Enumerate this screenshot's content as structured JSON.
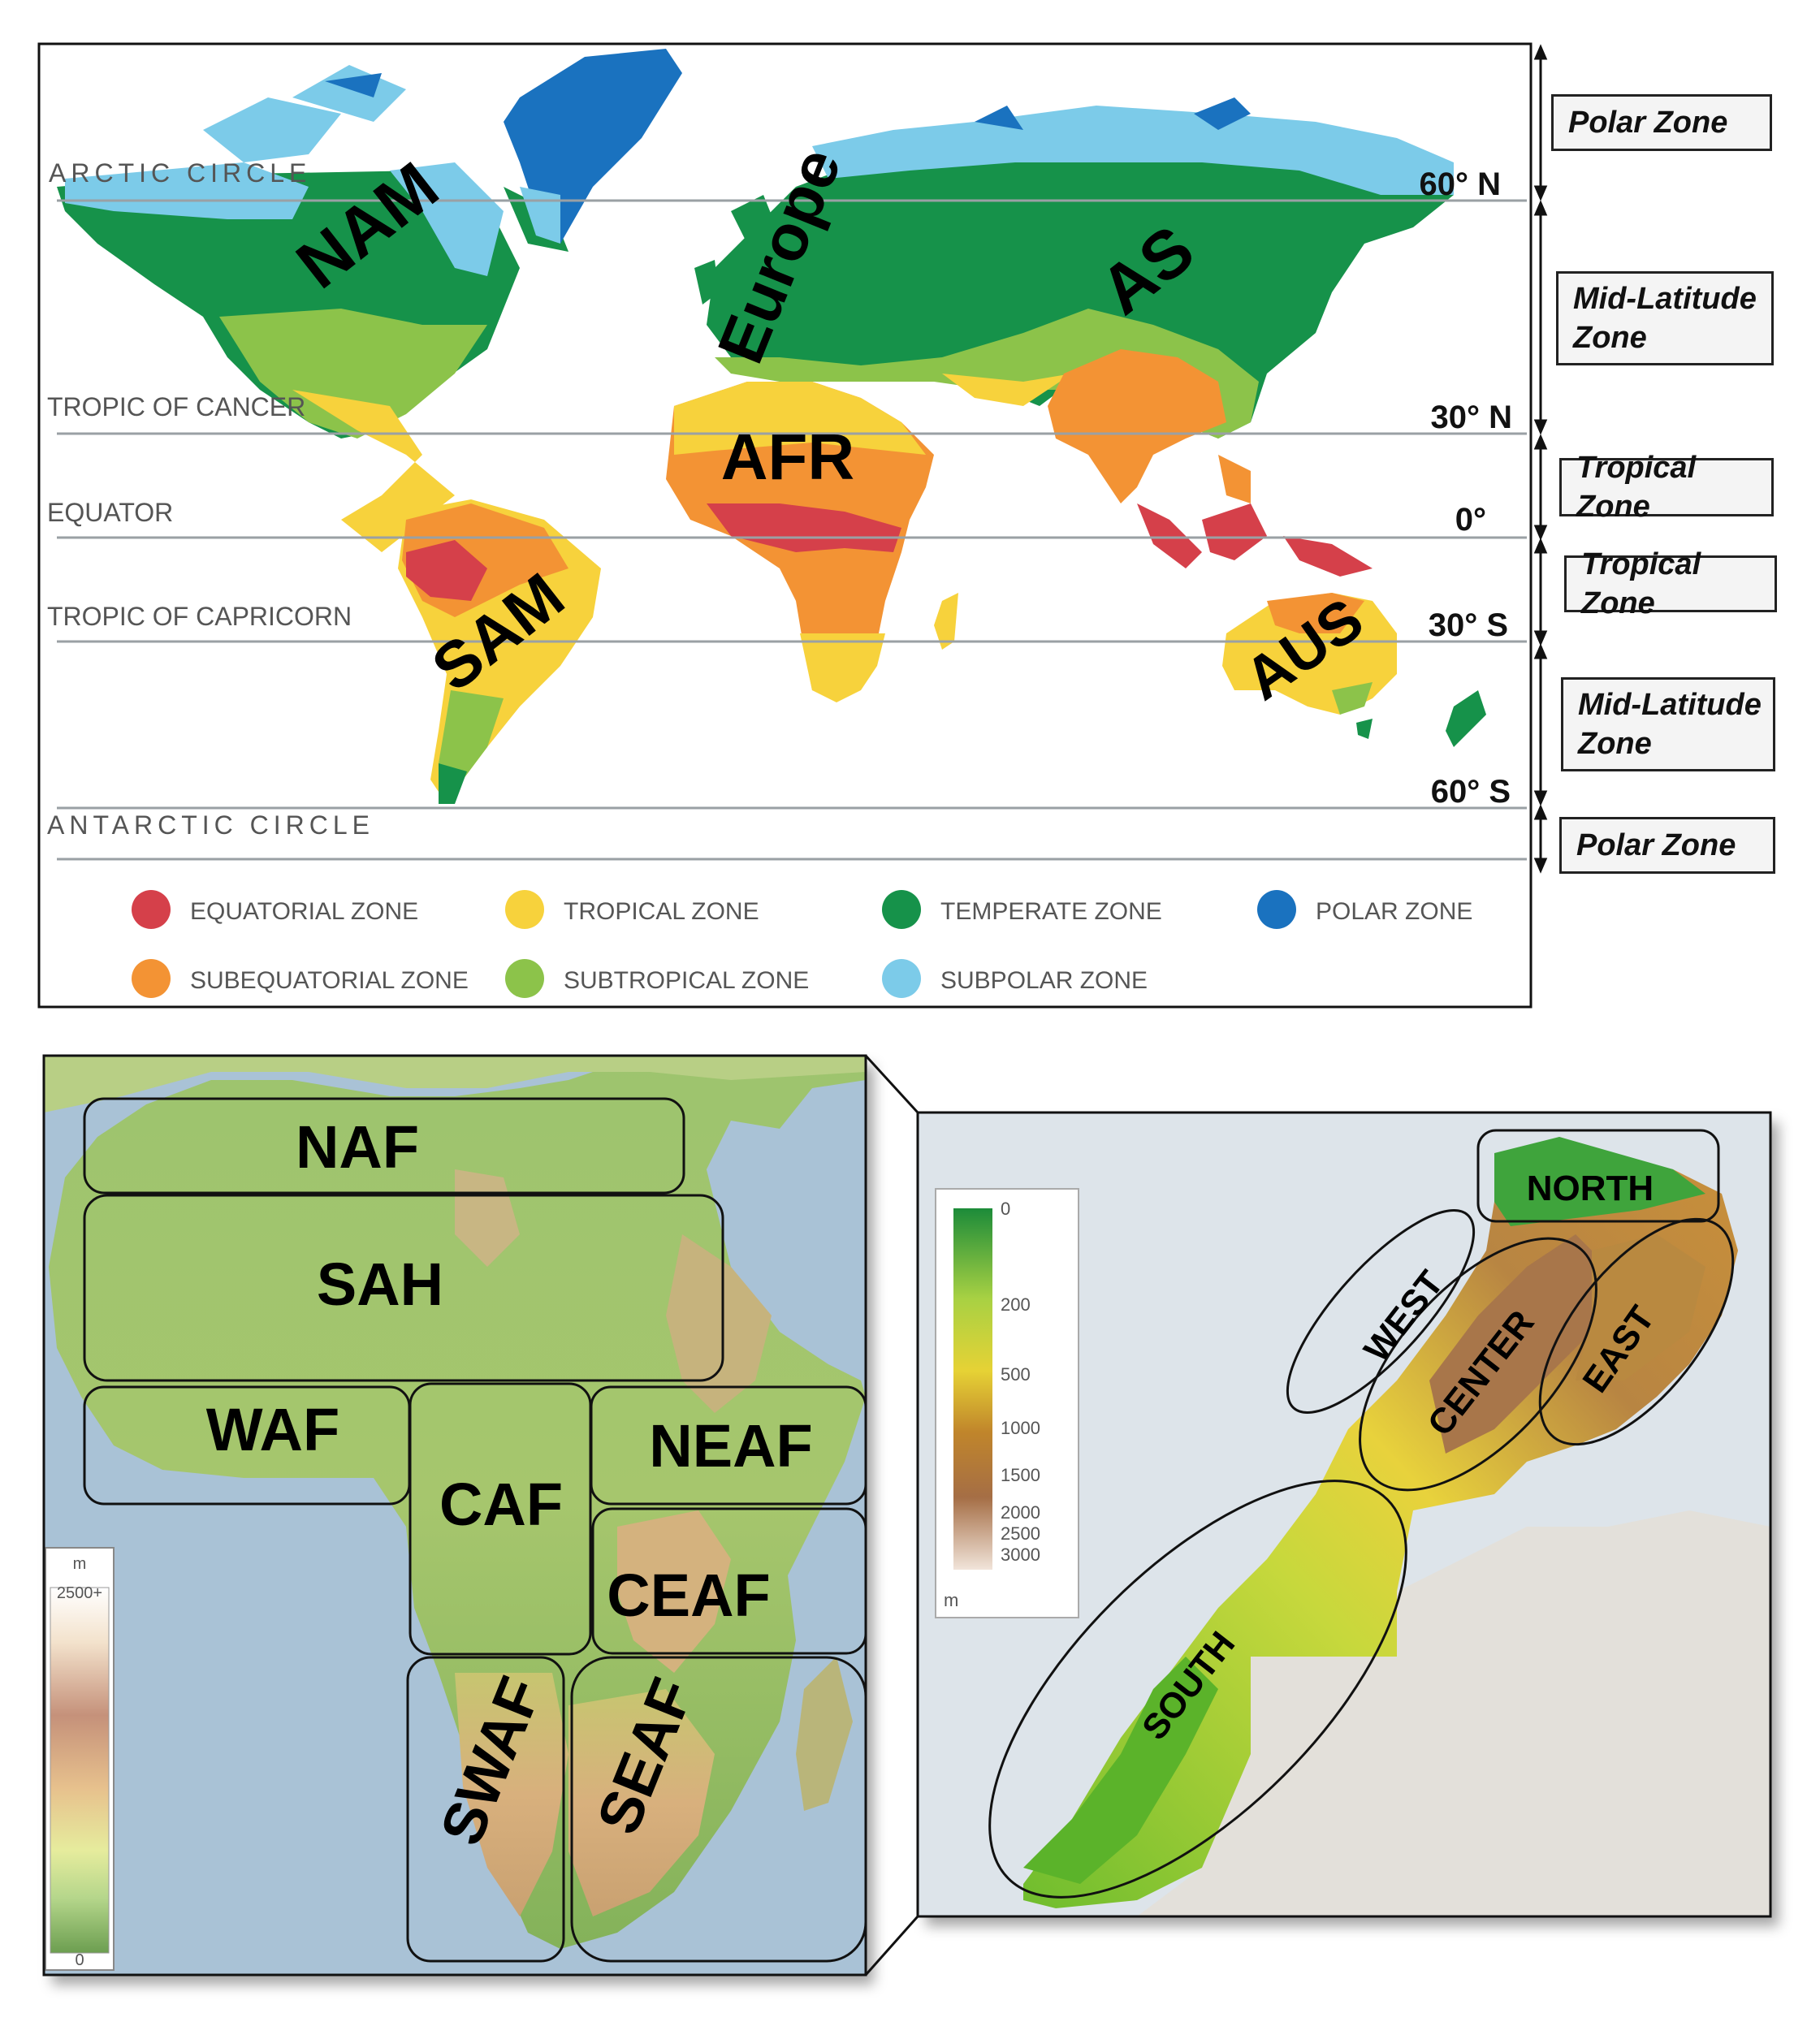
{
  "world_map": {
    "circle_labels": {
      "arctic": "ARCTIC CIRCLE",
      "cancer": "TROPIC OF CANCER",
      "equator": "EQUATOR",
      "capricorn": "TROPIC OF CAPRICORN",
      "antarctic": "ANTARCTIC CIRCLE"
    },
    "latitudes": {
      "n60": "60° N",
      "n30": "30° N",
      "eq": "0°",
      "s30": "30° S",
      "s60": "60° S"
    },
    "continents": {
      "nam": "NAM",
      "europe": "Europe",
      "as": "AS",
      "afr": "AFR",
      "sam": "SAM",
      "aus": "AUS"
    },
    "legend": [
      {
        "label": "EQUATORIAL ZONE",
        "color": "#d5404a"
      },
      {
        "label": "TROPICAL ZONE",
        "color": "#f7d23c"
      },
      {
        "label": "TEMPERATE ZONE",
        "color": "#16924a"
      },
      {
        "label": "POLAR ZONE",
        "color": "#1a72bf"
      },
      {
        "label": "SUBEQUATORIAL ZONE",
        "color": "#f39334"
      },
      {
        "label": "SUBTROPICAL ZONE",
        "color": "#8cc34a"
      },
      {
        "label": "SUBPOLAR ZONE",
        "color": "#7ccbe9"
      }
    ],
    "zones": {
      "polar_n": "Polar Zone",
      "mid_n_1": "Mid-Latitude",
      "mid_n_2": "Zone",
      "tropical_n": "Tropical Zone",
      "tropical_s": "Tropical Zone",
      "mid_s_1": "Mid-Latitude",
      "mid_s_2": "Zone",
      "polar_s": "Polar Zone"
    }
  },
  "africa_map": {
    "regions": {
      "naf": "NAF",
      "sah": "SAH",
      "waf": "WAF",
      "caf": "CAF",
      "neaf": "NEAF",
      "ceaf": "CEAF",
      "swaf": "SWAF",
      "seaf": "SEAF"
    },
    "legend": {
      "unit": "m",
      "top": "2500+",
      "bottom": "0"
    }
  },
  "morocco_map": {
    "regions": {
      "north": "NORTH",
      "west": "WEST",
      "center": "CENTER",
      "east": "EAST",
      "south": "SOUTH"
    },
    "legend": {
      "ticks": [
        "0",
        "200",
        "500",
        "1000",
        "1500",
        "2000",
        "2500",
        "3000"
      ],
      "unit": "m"
    }
  }
}
